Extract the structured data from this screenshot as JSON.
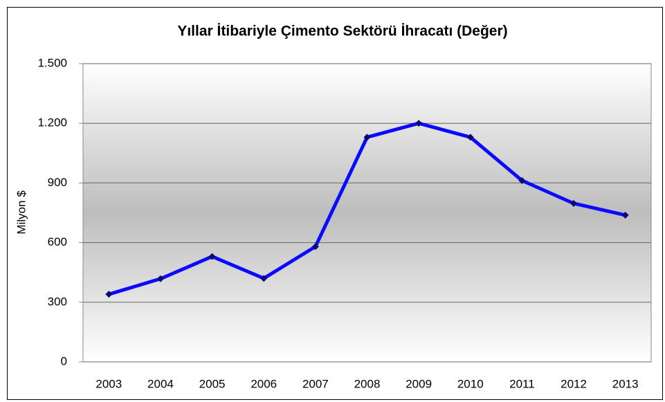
{
  "chart_data": {
    "type": "line",
    "title": "Yıllar İtibariyle Çimento Sektörü İhracatı (Değer)",
    "y_label": "Milyon $",
    "categories": [
      "2003",
      "2004",
      "2005",
      "2006",
      "2007",
      "2008",
      "2009",
      "2010",
      "2011",
      "2012",
      "2013"
    ],
    "values": [
      340,
      418,
      530,
      420,
      580,
      1130,
      1200,
      1130,
      912,
      797,
      738
    ],
    "color": "#0a0aff",
    "marker_color": "#0a0a6e",
    "ylim": [
      0,
      1500
    ],
    "yticks": [
      0,
      300,
      600,
      900,
      {
        "value": 1200,
        "label": "1.200"
      },
      {
        "value": 1500,
        "label": "1.500"
      }
    ],
    "grid": true
  }
}
